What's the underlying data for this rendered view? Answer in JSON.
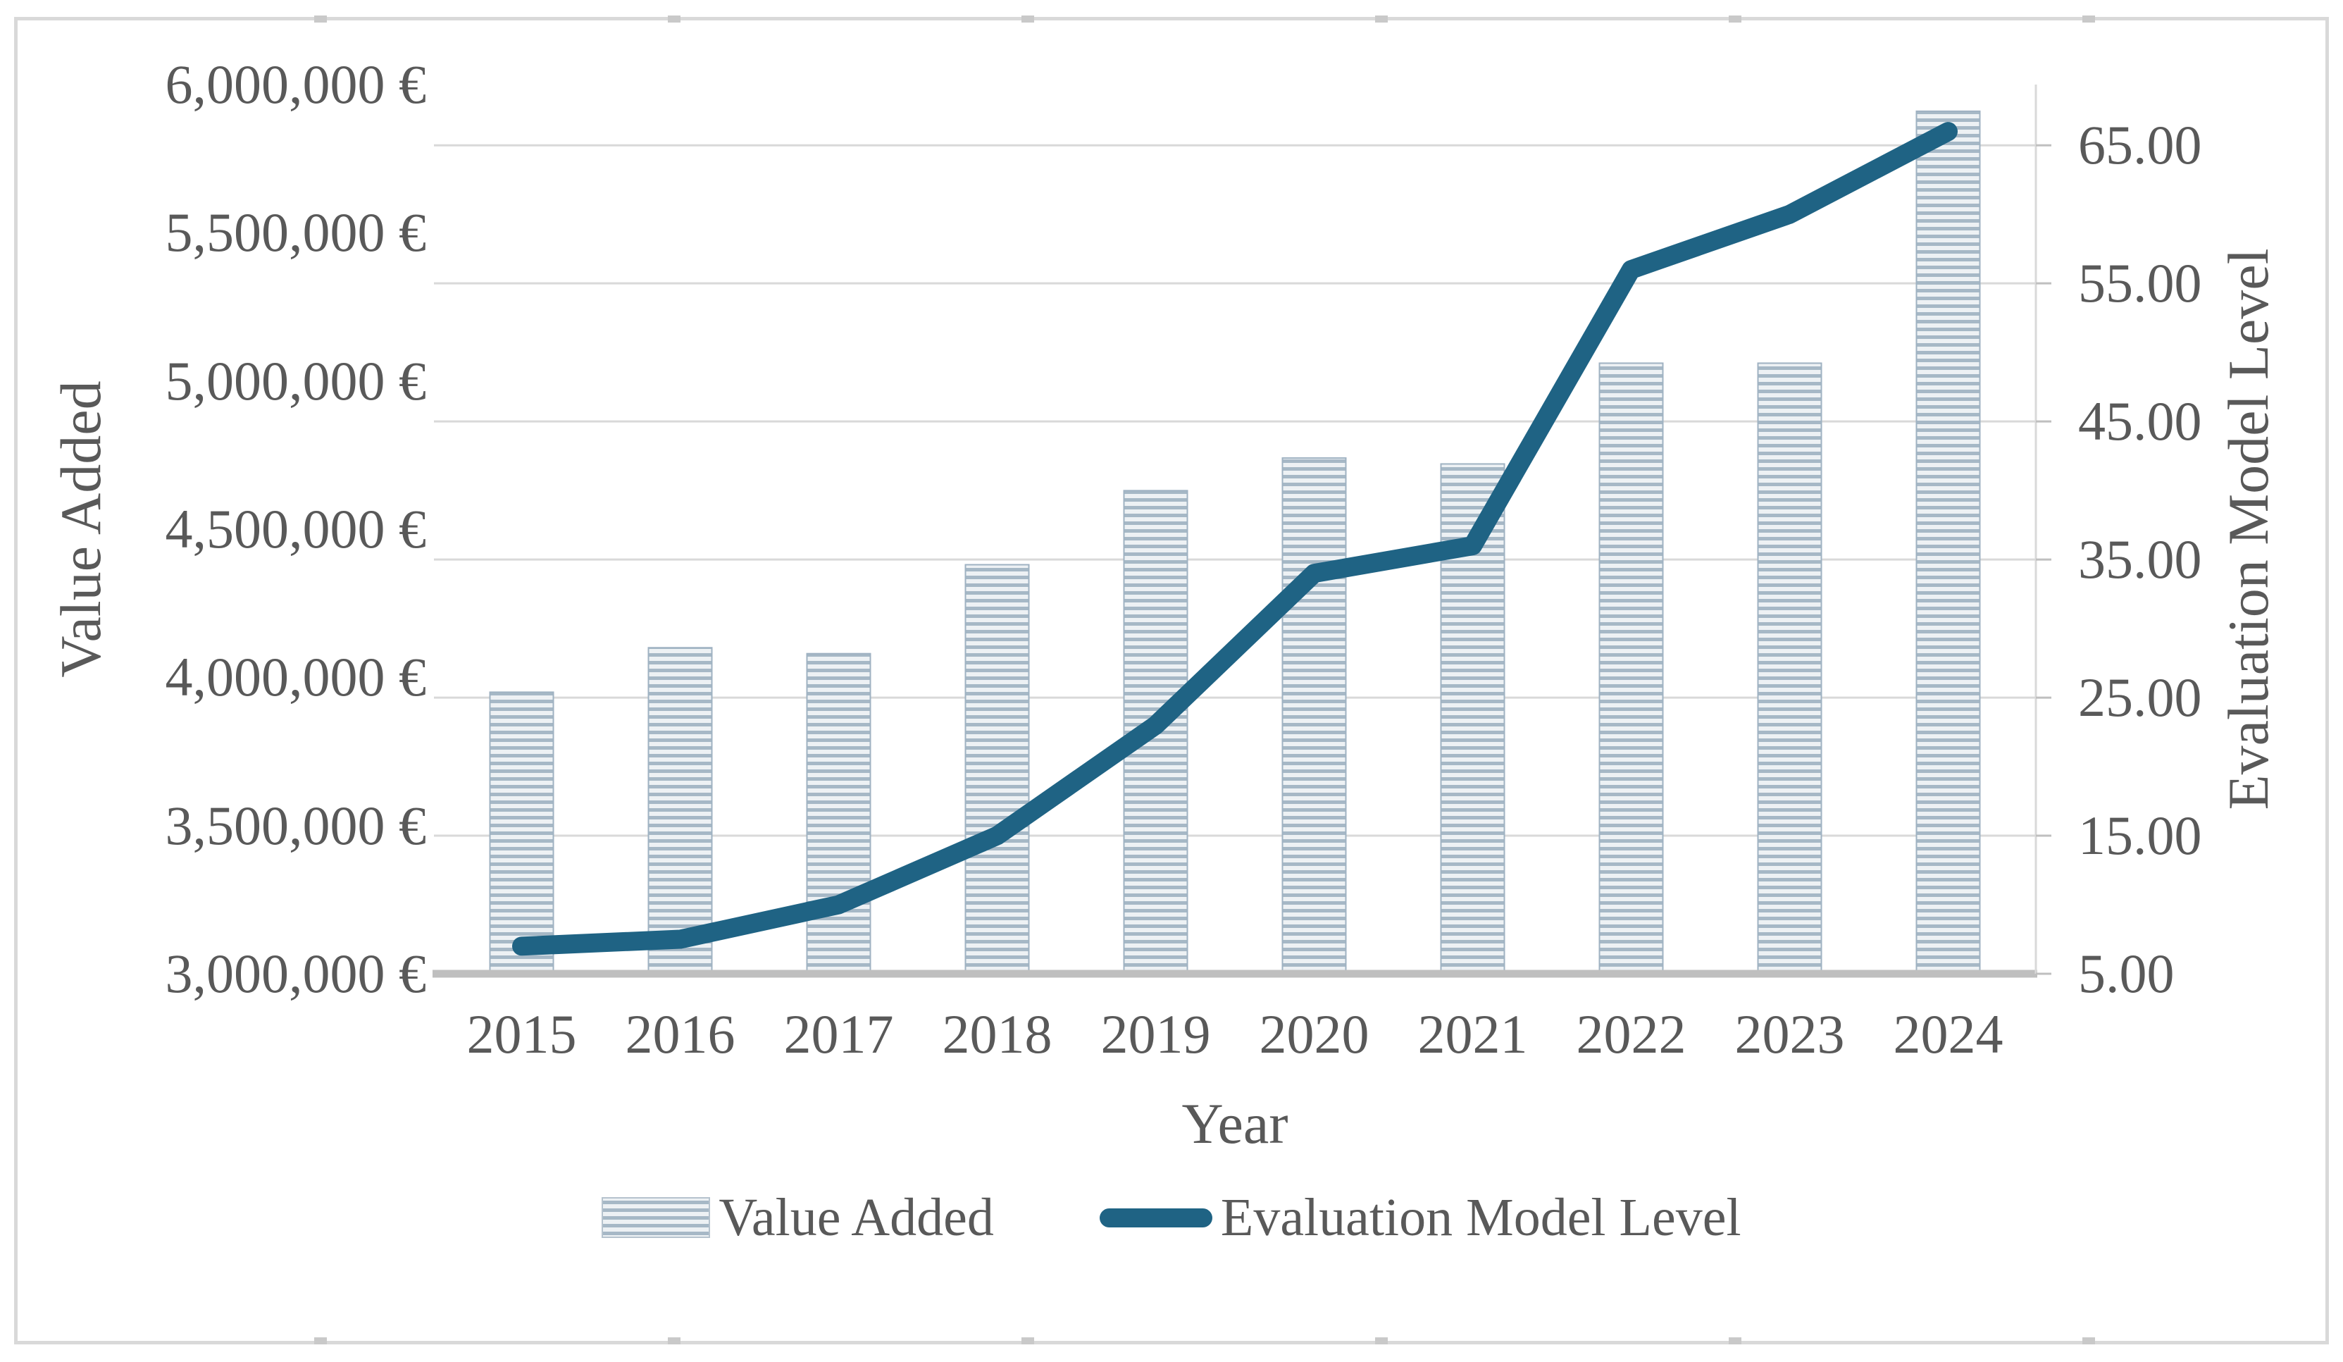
{
  "chart_data": {
    "type": "combo-bar-line",
    "categories": [
      "2015",
      "2016",
      "2017",
      "2018",
      "2019",
      "2020",
      "2021",
      "2022",
      "2023",
      "2024"
    ],
    "series": [
      {
        "name": "Value Added",
        "type": "bar",
        "axis": "left",
        "values": [
          3950000,
          4100000,
          4080000,
          4380000,
          4630000,
          4740000,
          4720000,
          5060000,
          5060000,
          5910000
        ]
      },
      {
        "name": "Evaluation Model Level",
        "type": "line",
        "axis": "right",
        "values": [
          7,
          7.5,
          10,
          15,
          23,
          34,
          36,
          56,
          60,
          66
        ]
      }
    ],
    "title": "",
    "xlabel": "Year",
    "left_axis": {
      "title": "Value Added",
      "tick_labels": [
        "6,000,000 €",
        "5,500,000 €",
        "5,000,000 €",
        "4,500,000 €",
        "4,000,000 €",
        "3,500,000 €",
        "3,000,000 €"
      ],
      "tick_values": [
        6000000,
        5500000,
        5000000,
        4500000,
        4000000,
        3500000,
        3000000
      ],
      "domain": [
        3000000,
        6000000
      ]
    },
    "right_axis": {
      "title": "Evaluation Model Level",
      "tick_labels": [
        "65.00",
        "55.00",
        "45.00",
        "35.00",
        "25.00",
        "15.00",
        "5.00"
      ],
      "tick_values": [
        65,
        55,
        45,
        35,
        25,
        15,
        5
      ],
      "domain": [
        5,
        69.4
      ],
      "gridline_values": [
        65,
        55,
        45,
        35,
        25,
        15
      ]
    },
    "legend": [
      {
        "label": "Value Added",
        "swatch": "bar-pattern-swatch"
      },
      {
        "label": "Evaluation Model Level",
        "swatch": "line-swatch"
      }
    ],
    "grid": "horizontal",
    "legend_position": "bottom-center"
  },
  "colors": {
    "text": "#595959",
    "gridline": "#d9d9d9",
    "axis_baseline": "#bfbfbf",
    "bar_stripe": "#a6b8c6",
    "bar_background": "#edf1f4",
    "bar_border": "#9fb2c2",
    "line": "#1f6384",
    "figure_border": "#d9d9d9"
  }
}
